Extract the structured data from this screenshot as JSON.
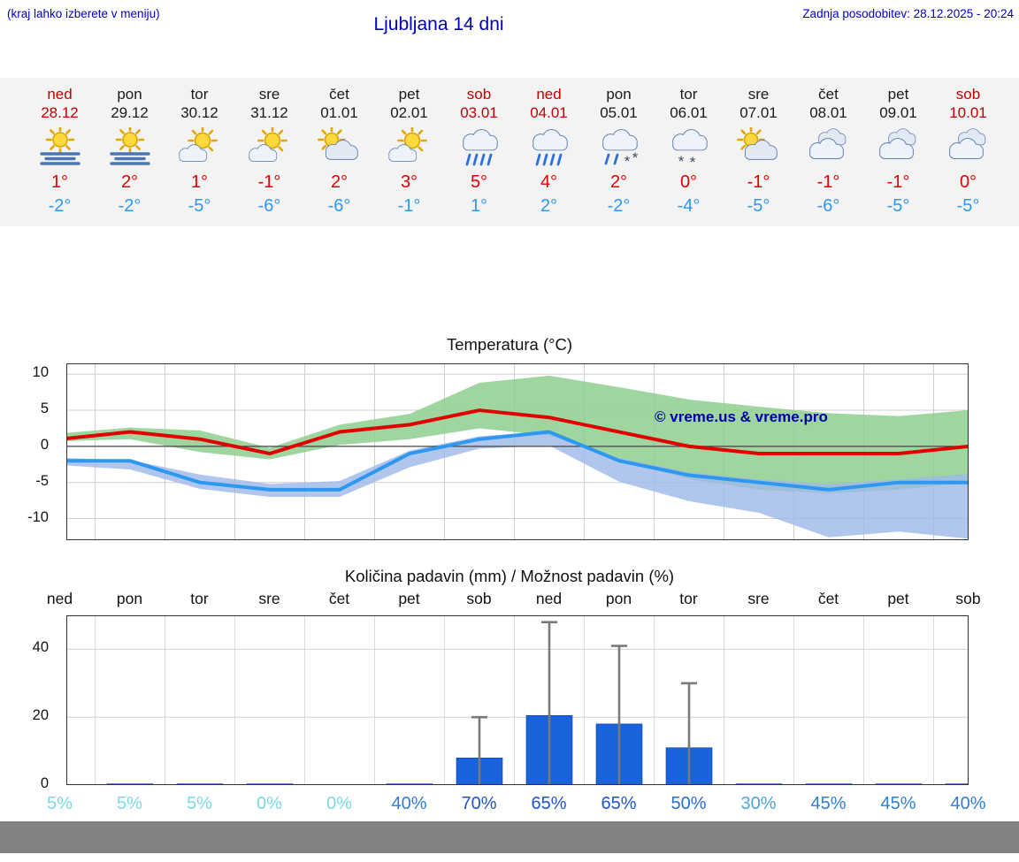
{
  "header": {
    "left_note": "(kraj lahko izberete v meniju)",
    "title": "Ljubljana 14 dni",
    "updated": "Zadnja posodobitev: 28.12.2025 - 20:24"
  },
  "colors": {
    "weekend": "#c00000",
    "weekday": "#1a1a1a",
    "high_temp": "#e00000",
    "low_temp": "#2e97f0",
    "header_blue": "#0000cc",
    "strip_bg": "#f3f3f3",
    "footer_gray": "#828282"
  },
  "forecast_days": [
    {
      "day": "ned",
      "date": "28.12",
      "weekend": true,
      "icon": "sun-fog",
      "high": "1°",
      "low": "-2°"
    },
    {
      "day": "pon",
      "date": "29.12",
      "weekend": false,
      "icon": "sun-fog",
      "high": "2°",
      "low": "-2°"
    },
    {
      "day": "tor",
      "date": "30.12",
      "weekend": false,
      "icon": "mostly-sunny",
      "high": "1°",
      "low": "-5°"
    },
    {
      "day": "sre",
      "date": "31.12",
      "weekend": false,
      "icon": "mostly-sunny",
      "high": "-1°",
      "low": "-6°"
    },
    {
      "day": "čet",
      "date": "01.01",
      "weekend": false,
      "icon": "partly-cloudy",
      "high": "2°",
      "low": "-6°"
    },
    {
      "day": "pet",
      "date": "02.01",
      "weekend": false,
      "icon": "mostly-sunny",
      "high": "3°",
      "low": "-1°"
    },
    {
      "day": "sob",
      "date": "03.01",
      "weekend": true,
      "icon": "rain",
      "high": "5°",
      "low": "1°"
    },
    {
      "day": "ned",
      "date": "04.01",
      "weekend": true,
      "icon": "rain",
      "high": "4°",
      "low": "2°"
    },
    {
      "day": "pon",
      "date": "05.01",
      "weekend": false,
      "icon": "sleet",
      "high": "2°",
      "low": "-2°"
    },
    {
      "day": "tor",
      "date": "06.01",
      "weekend": false,
      "icon": "snow",
      "high": "0°",
      "low": "-4°"
    },
    {
      "day": "sre",
      "date": "07.01",
      "weekend": false,
      "icon": "partly-cloudy",
      "high": "-1°",
      "low": "-5°"
    },
    {
      "day": "čet",
      "date": "08.01",
      "weekend": false,
      "icon": "cloudy",
      "high": "-1°",
      "low": "-6°"
    },
    {
      "day": "pet",
      "date": "09.01",
      "weekend": false,
      "icon": "cloudy",
      "high": "-1°",
      "low": "-5°"
    },
    {
      "day": "sob",
      "date": "10.01",
      "weekend": true,
      "icon": "cloudy",
      "high": "0°",
      "low": "-5°"
    }
  ],
  "chart_data": [
    {
      "type": "line",
      "title": "Temperatura (°C)",
      "categories": [
        "ned",
        "pon",
        "tor",
        "sre",
        "čet",
        "pet",
        "sob",
        "ned",
        "pon",
        "tor",
        "sre",
        "čet",
        "pet",
        "sob"
      ],
      "ylim": [
        -13,
        11.5
      ],
      "yticks": [
        10,
        5,
        0,
        -5,
        -10
      ],
      "series": [
        {
          "name": "max_temp",
          "color": "#e00000",
          "values": [
            1,
            2,
            1,
            -1,
            2,
            3,
            5,
            4,
            2,
            0,
            -1,
            -1,
            -1,
            0
          ]
        },
        {
          "name": "min_temp",
          "color": "#2e97f0",
          "values": [
            -2,
            -2,
            -5,
            -6,
            -6,
            -1,
            1,
            2,
            -2,
            -4,
            -5,
            -6,
            -5,
            -5
          ]
        }
      ],
      "bands": [
        {
          "name": "max_temp_range",
          "color": "#8ecf8e",
          "opacity": 0.85,
          "upper": [
            1.8,
            2.6,
            2.2,
            -0.2,
            3.0,
            4.5,
            8.8,
            9.8,
            8.2,
            6.5,
            5.5,
            4.6,
            4.2,
            5.0
          ],
          "lower": [
            0.7,
            1.0,
            -0.8,
            -1.8,
            0.2,
            1.0,
            2.5,
            1.5,
            -2.0,
            -4.5,
            -6.0,
            -6.5,
            -6.0,
            -5.0
          ]
        },
        {
          "name": "min_temp_range",
          "color": "#9db8e8",
          "opacity": 0.8,
          "upper": [
            -1.6,
            -1.9,
            -3.9,
            -5.2,
            -4.8,
            -0.6,
            1.4,
            2.1,
            -1.6,
            -3.6,
            -4.6,
            -5.2,
            -4.6,
            -3.8
          ],
          "lower": [
            -2.6,
            -3.2,
            -5.9,
            -7.0,
            -7.0,
            -2.9,
            -0.3,
            0.1,
            -4.9,
            -7.6,
            -9.2,
            -12.6,
            -11.8,
            -12.8
          ]
        }
      ],
      "watermark": "© vreme.us & vreme.pro"
    },
    {
      "type": "bar",
      "title": "Količina padavin (mm) / Možnost padavin (%)",
      "categories": [
        "ned",
        "pon",
        "tor",
        "sre",
        "čet",
        "pet",
        "sob",
        "ned",
        "pon",
        "tor",
        "sre",
        "čet",
        "pet",
        "sob"
      ],
      "ylim": [
        0,
        50
      ],
      "yticks": [
        0,
        20,
        40
      ],
      "values": [
        0,
        0.2,
        0.2,
        0.2,
        0,
        0.3,
        8,
        20.5,
        18,
        11,
        0.2,
        0.3,
        0.2,
        0.2
      ],
      "whiskers": [
        0,
        0,
        0,
        0,
        0,
        0,
        20,
        48,
        41,
        30,
        0,
        0,
        0,
        0
      ],
      "bar_color": "#1b63dd",
      "whisker_color": "#7a7a7a"
    }
  ],
  "probabilities": [
    {
      "label": "5%",
      "color": "#7cd9e3"
    },
    {
      "label": "5%",
      "color": "#7cd9e3"
    },
    {
      "label": "5%",
      "color": "#7cd9e3"
    },
    {
      "label": "0%",
      "color": "#7cd9e3"
    },
    {
      "label": "0%",
      "color": "#7cd9e3"
    },
    {
      "label": "40%",
      "color": "#2e7fd2"
    },
    {
      "label": "70%",
      "color": "#1e55c9"
    },
    {
      "label": "65%",
      "color": "#1e55c9"
    },
    {
      "label": "65%",
      "color": "#1e55c9"
    },
    {
      "label": "50%",
      "color": "#2a6ccf"
    },
    {
      "label": "30%",
      "color": "#4ea4de"
    },
    {
      "label": "45%",
      "color": "#2e7fd2"
    },
    {
      "label": "45%",
      "color": "#2e7fd2"
    },
    {
      "label": "40%",
      "color": "#2e7fd2"
    }
  ]
}
